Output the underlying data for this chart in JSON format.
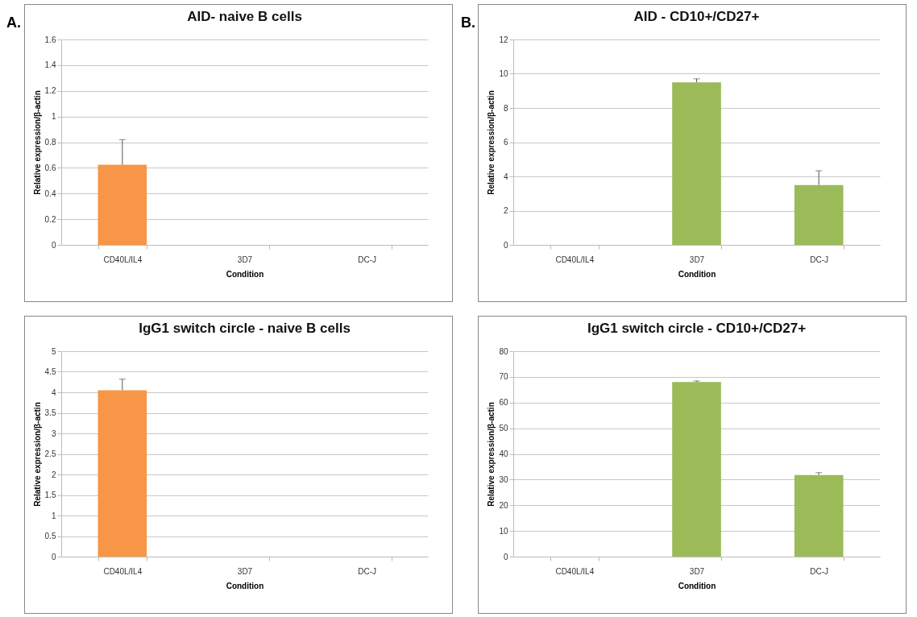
{
  "chart_data": [
    {
      "type": "bar",
      "title": "AID- naive B cells",
      "xlabel": "Condition",
      "ylabel": "Relative expression/β-actin",
      "categories": [
        "CD40L/IL4",
        "3D7",
        "DC-J"
      ],
      "values": [
        0.625,
        null,
        null
      ],
      "errors": [
        [
          0.625,
          0.82
        ],
        null,
        null
      ],
      "color": "#f79646",
      "ylim": [
        0,
        1.6
      ],
      "yticks": [
        0,
        0.2,
        0.4,
        0.6,
        0.8,
        1,
        1.2,
        1.4,
        1.6
      ],
      "grid": "y",
      "annotations": [
        "A."
      ]
    },
    {
      "type": "bar",
      "title": "AID - CD10+/CD27+",
      "xlabel": "Condition",
      "ylabel": "Relative expression/β-actin",
      "categories": [
        "CD40L/IL4",
        "3D7",
        "DC-J"
      ],
      "values": [
        null,
        9.5,
        3.5
      ],
      "errors": [
        null,
        [
          9.5,
          9.7
        ],
        [
          3.5,
          4.33
        ]
      ],
      "color": "#9bbb59",
      "ylim": [
        0,
        12
      ],
      "yticks": [
        0,
        2,
        4,
        6,
        8,
        10,
        12
      ],
      "grid": "y",
      "annotations": [
        "B."
      ]
    },
    {
      "type": "bar",
      "title": "IgG1 switch circle - naive B cells",
      "xlabel": "Condition",
      "ylabel": "Relative expression/β-actin",
      "categories": [
        "CD40L/IL4",
        "3D7",
        "DC-J"
      ],
      "values": [
        4.05,
        null,
        null
      ],
      "errors": [
        [
          4.05,
          4.32
        ],
        null,
        null
      ],
      "color": "#f79646",
      "ylim": [
        0,
        5
      ],
      "yticks": [
        0,
        0.5,
        1,
        1.5,
        2,
        2.5,
        3,
        3.5,
        4,
        4.5,
        5
      ],
      "grid": "y"
    },
    {
      "type": "bar",
      "title": "IgG1 switch circle - CD10+/CD27+",
      "xlabel": "Condition",
      "ylabel": "Relative expression/β-actin",
      "categories": [
        "CD40L/IL4",
        "3D7",
        "DC-J"
      ],
      "values": [
        null,
        68,
        31.8
      ],
      "errors": [
        null,
        [
          68,
          68.4
        ],
        [
          31.8,
          32.7
        ]
      ],
      "color": "#9bbb59",
      "ylim": [
        0,
        80
      ],
      "yticks": [
        0,
        10,
        20,
        30,
        40,
        50,
        60,
        70,
        80
      ],
      "grid": "y"
    }
  ]
}
